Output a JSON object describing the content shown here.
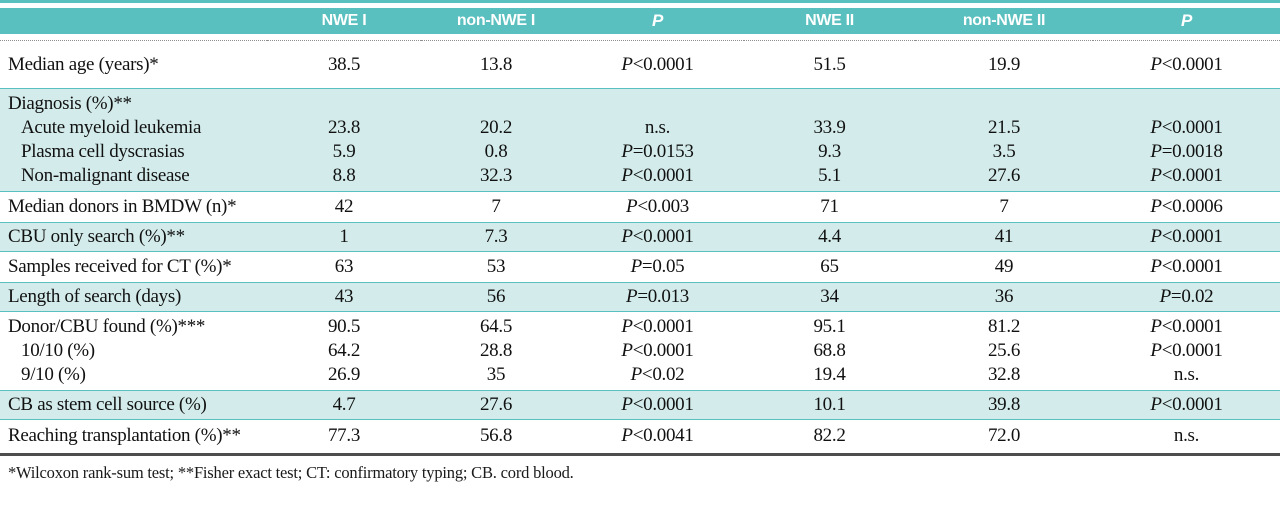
{
  "colors": {
    "teal_header": "#5ABFBF",
    "band_shaded": "#D3ECEB",
    "rule_dark": "#4D4D4D"
  },
  "table": {
    "columns": {
      "c0": "",
      "c1": "NWE I",
      "c2": "non-NWE I",
      "c3": "P",
      "c4": "NWE II",
      "c5": "non-NWE II",
      "c6": "P"
    },
    "rows": [
      {
        "label": "Median age (years)*",
        "cells": [
          "38.5",
          "13.8",
          "P<0.0001",
          "51.5",
          "19.9",
          "P<0.0001"
        ]
      },
      {
        "label": "Diagnosis (%)**",
        "cells": [
          "",
          "",
          "",
          "",
          "",
          ""
        ]
      },
      {
        "label": "Acute myeloid leukemia",
        "cells": [
          "23.8",
          "20.2",
          "n.s.",
          "33.9",
          "21.5",
          "P<0.0001"
        ]
      },
      {
        "label": "Plasma cell dyscrasias",
        "cells": [
          "5.9",
          "0.8",
          "P=0.0153",
          "9.3",
          "3.5",
          "P=0.0018"
        ]
      },
      {
        "label": "Non-malignant disease",
        "cells": [
          "8.8",
          "32.3",
          "P<0.0001",
          "5.1",
          "27.6",
          "P<0.0001"
        ]
      },
      {
        "label": "Median donors in BMDW (n)*",
        "cells": [
          "42",
          "7",
          "P<0.003",
          "71",
          "7",
          "P<0.0006"
        ]
      },
      {
        "label": "CBU only search (%)**",
        "cells": [
          "1",
          "7.3",
          "P<0.0001",
          "4.4",
          "41",
          "P<0.0001"
        ]
      },
      {
        "label": "Samples received for CT (%)*",
        "cells": [
          "63",
          "53",
          "P=0.05",
          "65",
          "49",
          "P<0.0001"
        ]
      },
      {
        "label": "Length of search (days)",
        "cells": [
          "43",
          "56",
          "P=0.013",
          "34",
          "36",
          "P=0.02"
        ]
      },
      {
        "label": "Donor/CBU found (%)***",
        "cells": [
          "90.5",
          "64.5",
          "P<0.0001",
          "95.1",
          "81.2",
          "P<0.0001"
        ]
      },
      {
        "label": "10/10 (%)",
        "cells": [
          "64.2",
          "28.8",
          "P<0.0001",
          "68.8",
          "25.6",
          "P<0.0001"
        ]
      },
      {
        "label": "9/10 (%)",
        "cells": [
          "26.9",
          "35",
          "P<0.02",
          "19.4",
          "32.8",
          "n.s."
        ]
      },
      {
        "label": "CB as stem cell source (%)",
        "cells": [
          "4.7",
          "27.6",
          "P<0.0001",
          "10.1",
          "39.8",
          "P<0.0001"
        ]
      },
      {
        "label": "Reaching transplantation (%)**",
        "cells": [
          "77.3",
          "56.8",
          "P<0.0041",
          "82.2",
          "72.0",
          "n.s."
        ]
      }
    ],
    "footnote": "*Wilcoxon rank-sum test; **Fisher exact test; CT: confirmatory typing; CB. cord blood."
  }
}
